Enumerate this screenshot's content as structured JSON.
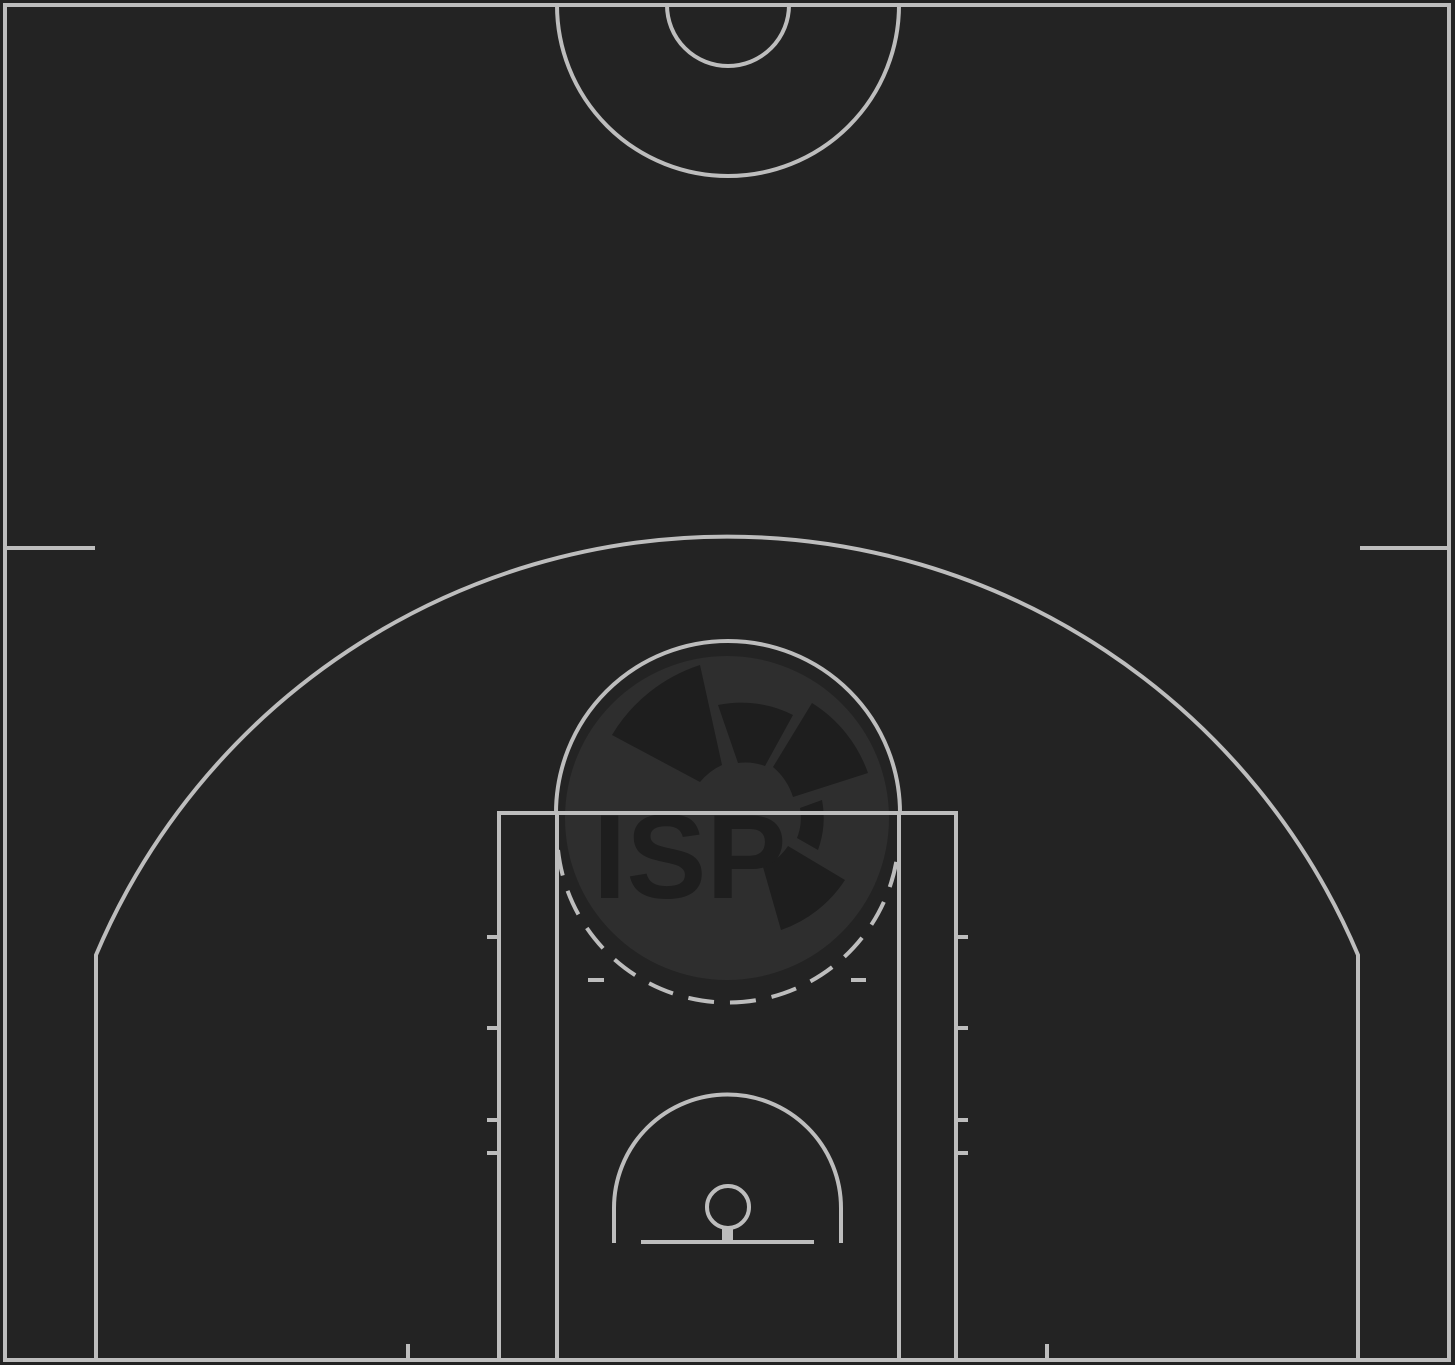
{
  "court": {
    "background_color": "#232323",
    "line_color": "#bdbdbd",
    "view": "half-court"
  },
  "watermark": {
    "text": "ISP",
    "fill_color": "#2e2e2e"
  }
}
